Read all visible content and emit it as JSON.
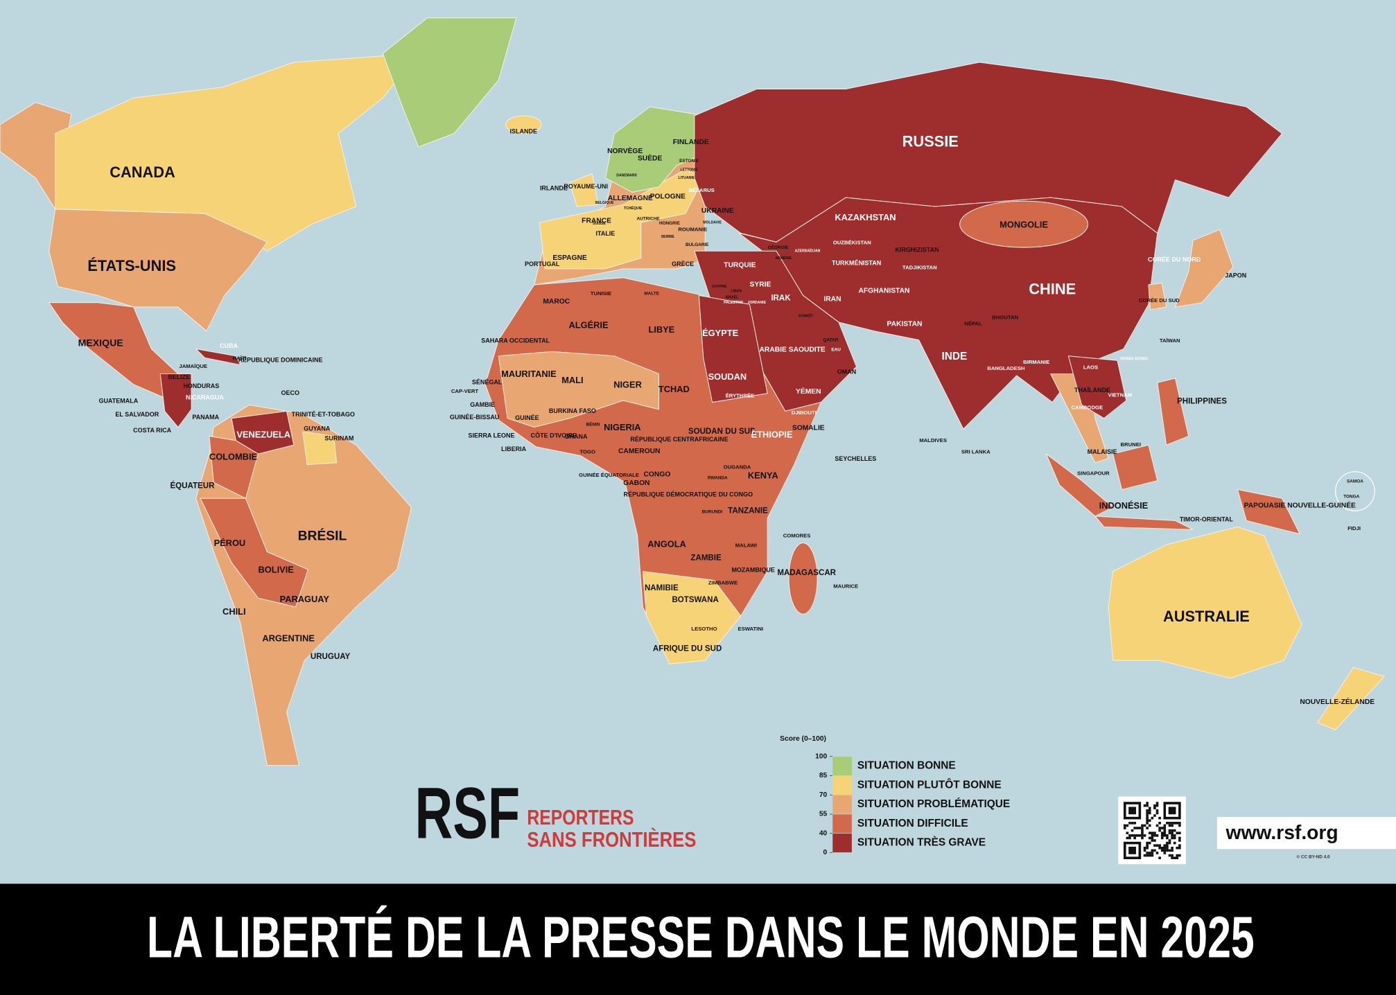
{
  "title": "LA LIBERTÉ DE LA PRESSE DANS LE MONDE EN 2025",
  "logo": {
    "mark": "RSF",
    "name_line1": "REPORTERS",
    "name_line2": "SANS FRONTIÈRES"
  },
  "url": "www.rsf.org",
  "license": "© CC BY-ND 4.0",
  "legend": {
    "score_label": "Score (0–100)",
    "ticks": [
      100,
      85,
      70,
      55,
      40,
      0
    ],
    "categories": [
      {
        "label": "SITUATION BONNE",
        "color": "#a8cc78",
        "countries": [
          "NORVÈGE",
          "SUÈDE",
          "FINLANDE",
          "ESTONIE",
          "DANEMARK",
          "IRLANDE",
          "SUISSE"
        ]
      },
      {
        "label": "SITUATION PLUTÔT BONNE",
        "color": "#f6d376",
        "countries": [
          "CANADA",
          "AUSTRALIE",
          "NOUVELLE-ZÉLANDE",
          "ISLANDE",
          "ROYAUME-UNI",
          "ALLEMAGNE",
          "FRANCE",
          "ESPAGNE",
          "PORTUGAL",
          "BELGIQUE",
          "AUTRICHE",
          "TCHÉQUIE",
          "POLOGNE",
          "LETTONIE",
          "LITUANIE",
          "NAMIBIE",
          "AFRIQUE DU SUD",
          "GABON",
          "TRINITÉ-ET-TOBAGO",
          "SURINAM",
          "TAÏWAN",
          "SAMOA",
          "TIMOR-ORIENTAL",
          "JAMAÏQUE"
        ]
      },
      {
        "label": "SITUATION PROBLÉMATIQUE",
        "color": "#e8a672",
        "countries": [
          "ÉTATS-UNIS",
          "BRÉSIL",
          "ARGENTINE",
          "CHILI",
          "URUGUAY",
          "PARAGUAY",
          "ITALIE",
          "ROUMANIE",
          "HONGRIE",
          "BULGARIE",
          "GRÈCE",
          "UKRAINE",
          "MOLDAVIE",
          "MAURITANIE",
          "NIGER",
          "SÉNÉGAL",
          "CAP-VERT",
          "GAMBIE",
          "GHANA",
          "CÔTE D'IVOIRE",
          "SIERRA LEONE",
          "LIBERIA",
          "BOTSWANA",
          "LESOTHO",
          "MALAWI",
          "SEYCHELLES",
          "MAURICE",
          "COMORES",
          "JAPON",
          "CORÉE DU SUD",
          "MALAISIE",
          "THAÏLANDE",
          "PAPOUASIE NOUVELLE-GUINÉE",
          "FIDJI",
          "TONGA",
          "ARMÉNIE",
          "NÉPAL",
          "MALDIVES",
          "GUYANA",
          "RÉPUBLIQUE DOMINICAINE",
          "TUNISIE",
          "MALTE",
          "OECO",
          "PANAMA",
          "COSTA RICA"
        ]
      },
      {
        "label": "SITUATION DIFFICILE",
        "color": "#d2694b",
        "countries": [
          "MEXIQUE",
          "COLOMBIE",
          "ÉQUATEUR",
          "PÉROU",
          "BOLIVIE",
          "GUATEMALA",
          "HONDURAS",
          "EL SALVADOR",
          "HAÏTI",
          "BELIZE",
          "ALGÉRIE",
          "MAROC",
          "LIBYE",
          "MALI",
          "TCHAD",
          "NIGERIA",
          "BURKINA FASO",
          "BÉNIN",
          "TOGO",
          "GUINÉE",
          "GUINÉE-BISSAU",
          "CAMEROUN",
          "CONGO",
          "RÉPUBLIQUE CENTRAFRICAINE",
          "RÉPUBLIQUE DÉMOCRATIQUE DU CONGO",
          "ANGOLA",
          "ZAMBIE",
          "ZIMBABWE",
          "MOZAMBIQUE",
          "TANZANIE",
          "KENYA",
          "OUGANDA",
          "RWANDA",
          "BURUNDI",
          "MADAGASCAR",
          "SOMALIE",
          "SOUDAN DU SUD",
          "MONGOLIE",
          "PHILIPPINES",
          "INDONÉSIE",
          "SINGAPOUR",
          "BRUNEI",
          "SRI LANKA",
          "BHOUTAN",
          "QATAR",
          "OMAN",
          "KOWEÏT",
          "LIBAN",
          "ISRAËL",
          "GÉORGIE",
          "KIRGHIZISTAN",
          "SERBIE",
          "SAHARA OCCIDENTAL",
          "GUINÉE ÉQUATORIALE",
          "ESWATINI",
          "CHYPRE"
        ]
      },
      {
        "label": "SITUATION TRÈS GRAVE",
        "color": "#9e2e2e",
        "countries": [
          "RUSSIE",
          "CHINE",
          "INDE",
          "KAZAKHSTAN",
          "OUZBÉKISTAN",
          "TURKMÉNISTAN",
          "TADJIKISTAN",
          "AFGHANISTAN",
          "PAKISTAN",
          "IRAN",
          "IRAK",
          "SYRIE",
          "TURQUIE",
          "ARABIE SAOUDITE",
          "YÉMEN",
          "ÉGYPTE",
          "SOUDAN",
          "ÉRYTHRÉE",
          "ÉTHIOPIE",
          "DJIBOUTI",
          "BÉLARUS",
          "AZERBAÏDJAN",
          "VENEZUELA",
          "NICARAGUA",
          "CUBA",
          "CORÉE DU NORD",
          "VIETNAM",
          "LAOS",
          "CAMBODGE",
          "BIRMANIE",
          "BANGLADESH",
          "HONG KONG",
          "PALESTINE",
          "JORDANIE",
          "EAU"
        ]
      }
    ]
  }
}
